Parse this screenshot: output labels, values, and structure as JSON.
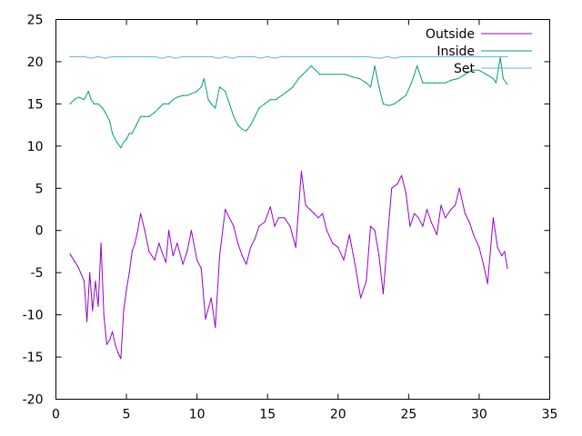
{
  "chart_data": {
    "type": "line",
    "title": "",
    "xlabel": "",
    "ylabel": "",
    "xlim": [
      0,
      35
    ],
    "ylim": [
      -20,
      25
    ],
    "xticks": [
      0,
      5,
      10,
      15,
      20,
      25,
      30,
      35
    ],
    "yticks": [
      -20,
      -15,
      -10,
      -5,
      0,
      5,
      10,
      15,
      20,
      25
    ],
    "grid": false,
    "legend": "top-right",
    "series": [
      {
        "name": "Outside",
        "color": "#9400d3",
        "x": [
          1.0,
          1.3,
          1.6,
          2.0,
          2.2,
          2.4,
          2.6,
          2.8,
          3.0,
          3.2,
          3.4,
          3.6,
          3.8,
          4.0,
          4.2,
          4.4,
          4.6,
          4.8,
          5.0,
          5.2,
          5.4,
          5.6,
          5.8,
          6.0,
          6.3,
          6.6,
          7.0,
          7.3,
          7.5,
          7.8,
          8.0,
          8.3,
          8.6,
          9.0,
          9.3,
          9.6,
          10.0,
          10.3,
          10.6,
          11.0,
          11.3,
          11.6,
          12.0,
          12.3,
          12.6,
          12.9,
          13.2,
          13.5,
          13.8,
          14.1,
          14.4,
          14.8,
          15.2,
          15.5,
          15.8,
          16.2,
          16.6,
          17.0,
          17.4,
          17.7,
          18.0,
          18.3,
          18.6,
          18.9,
          19.2,
          19.6,
          20.0,
          20.4,
          20.8,
          21.2,
          21.6,
          22.0,
          22.3,
          22.6,
          22.9,
          23.2,
          23.5,
          23.8,
          24.2,
          24.5,
          24.8,
          25.1,
          25.4,
          25.7,
          26.0,
          26.3,
          26.6,
          27.0,
          27.3,
          27.6,
          28.0,
          28.3,
          28.6,
          29.0,
          29.3,
          29.6,
          30.0,
          30.3,
          30.6,
          31.0,
          31.3,
          31.6,
          31.8,
          32.0
        ],
        "values": [
          -2.8,
          -3.6,
          -4.4,
          -6.0,
          -10.8,
          -5.0,
          -9.5,
          -6.0,
          -9.0,
          -1.5,
          -10.0,
          -13.5,
          -13.0,
          -12.0,
          -13.5,
          -14.5,
          -15.2,
          -9.5,
          -7.0,
          -5.0,
          -2.5,
          -1.5,
          0.0,
          2.0,
          0.0,
          -2.5,
          -3.5,
          -1.5,
          -2.5,
          -3.8,
          0.0,
          -3.0,
          -1.5,
          -4.0,
          -2.5,
          0.0,
          -3.5,
          -4.5,
          -10.5,
          -8.0,
          -11.5,
          -3.0,
          2.5,
          1.5,
          0.5,
          -1.5,
          -3.0,
          -4.0,
          -2.0,
          -1.0,
          0.5,
          1.0,
          2.8,
          0.5,
          1.5,
          1.5,
          0.5,
          -2.0,
          7.0,
          3.0,
          2.5,
          2.0,
          1.5,
          2.0,
          0.0,
          -1.5,
          -2.0,
          -3.5,
          -0.5,
          -4.0,
          -8.0,
          -6.0,
          0.5,
          0.0,
          -3.0,
          -7.5,
          -1.0,
          5.0,
          5.5,
          6.5,
          4.5,
          0.5,
          2.0,
          1.5,
          0.5,
          2.5,
          1.0,
          -0.5,
          3.0,
          1.5,
          2.5,
          3.0,
          5.0,
          2.0,
          1.0,
          -0.5,
          -2.0,
          -4.0,
          -6.3,
          1.5,
          -2.0,
          -3.0,
          -2.5,
          -4.5
        ]
      },
      {
        "name": "Inside",
        "color": "#009e73",
        "x": [
          1.0,
          1.3,
          1.6,
          2.0,
          2.3,
          2.5,
          2.7,
          3.0,
          3.3,
          3.5,
          3.8,
          4.0,
          4.3,
          4.6,
          4.8,
          5.0,
          5.2,
          5.4,
          5.7,
          6.0,
          6.3,
          6.6,
          7.0,
          7.3,
          7.6,
          8.0,
          8.3,
          8.6,
          9.0,
          9.3,
          9.6,
          10.0,
          10.3,
          10.5,
          10.8,
          11.0,
          11.3,
          11.6,
          12.0,
          12.3,
          12.6,
          12.9,
          13.2,
          13.5,
          13.8,
          14.1,
          14.4,
          14.8,
          15.2,
          15.6,
          16.0,
          16.4,
          16.8,
          17.2,
          17.5,
          17.8,
          18.1,
          18.4,
          18.7,
          19.0,
          19.5,
          20.0,
          20.5,
          21.0,
          21.5,
          22.0,
          22.3,
          22.6,
          22.9,
          23.2,
          23.6,
          24.0,
          24.4,
          24.8,
          25.2,
          25.6,
          26.0,
          26.4,
          26.8,
          27.2,
          27.6,
          28.0,
          28.5,
          29.0,
          29.5,
          30.0,
          30.5,
          31.0,
          31.2,
          31.5,
          31.7,
          32.0
        ],
        "values": [
          15.0,
          15.5,
          15.8,
          15.5,
          16.5,
          15.5,
          15.0,
          15.0,
          14.5,
          14.0,
          13.0,
          11.5,
          10.5,
          9.8,
          10.5,
          10.8,
          11.5,
          11.5,
          12.5,
          13.5,
          13.5,
          13.5,
          14.0,
          14.5,
          15.0,
          15.0,
          15.5,
          15.8,
          16.0,
          16.0,
          16.2,
          16.5,
          17.0,
          18.0,
          15.5,
          15.0,
          14.5,
          17.0,
          16.5,
          15.0,
          13.5,
          12.5,
          12.0,
          11.8,
          12.5,
          13.5,
          14.5,
          15.0,
          15.5,
          15.5,
          16.0,
          16.5,
          17.0,
          18.0,
          18.5,
          19.0,
          19.5,
          19.0,
          18.5,
          18.5,
          18.5,
          18.5,
          18.5,
          18.2,
          18.0,
          17.5,
          17.0,
          19.5,
          17.0,
          15.0,
          14.8,
          15.0,
          15.5,
          16.0,
          17.5,
          19.5,
          17.5,
          17.5,
          17.5,
          17.5,
          17.5,
          17.8,
          18.0,
          18.5,
          19.0,
          19.0,
          18.5,
          18.0,
          17.5,
          20.5,
          18.0,
          17.3
        ]
      },
      {
        "name": "Set",
        "color": "#56b4e9",
        "x": [
          1.0,
          2.0,
          2.5,
          3.0,
          3.5,
          4.0,
          7.0,
          7.5,
          8.0,
          8.5,
          9.0,
          11.0,
          11.5,
          12.0,
          12.5,
          13.0,
          14.0,
          14.5,
          15.0,
          15.5,
          16.0,
          22.0,
          23.0,
          23.5,
          24.0,
          24.5,
          25.0,
          30.0,
          31.5,
          32.0
        ],
        "values": [
          20.6,
          20.6,
          20.4,
          20.6,
          20.4,
          20.6,
          20.6,
          20.4,
          20.6,
          20.4,
          20.6,
          20.6,
          20.4,
          20.6,
          20.4,
          20.6,
          20.6,
          20.4,
          20.6,
          20.4,
          20.6,
          20.6,
          20.4,
          20.6,
          20.4,
          20.6,
          20.6,
          20.6,
          20.6,
          20.6
        ]
      }
    ]
  }
}
